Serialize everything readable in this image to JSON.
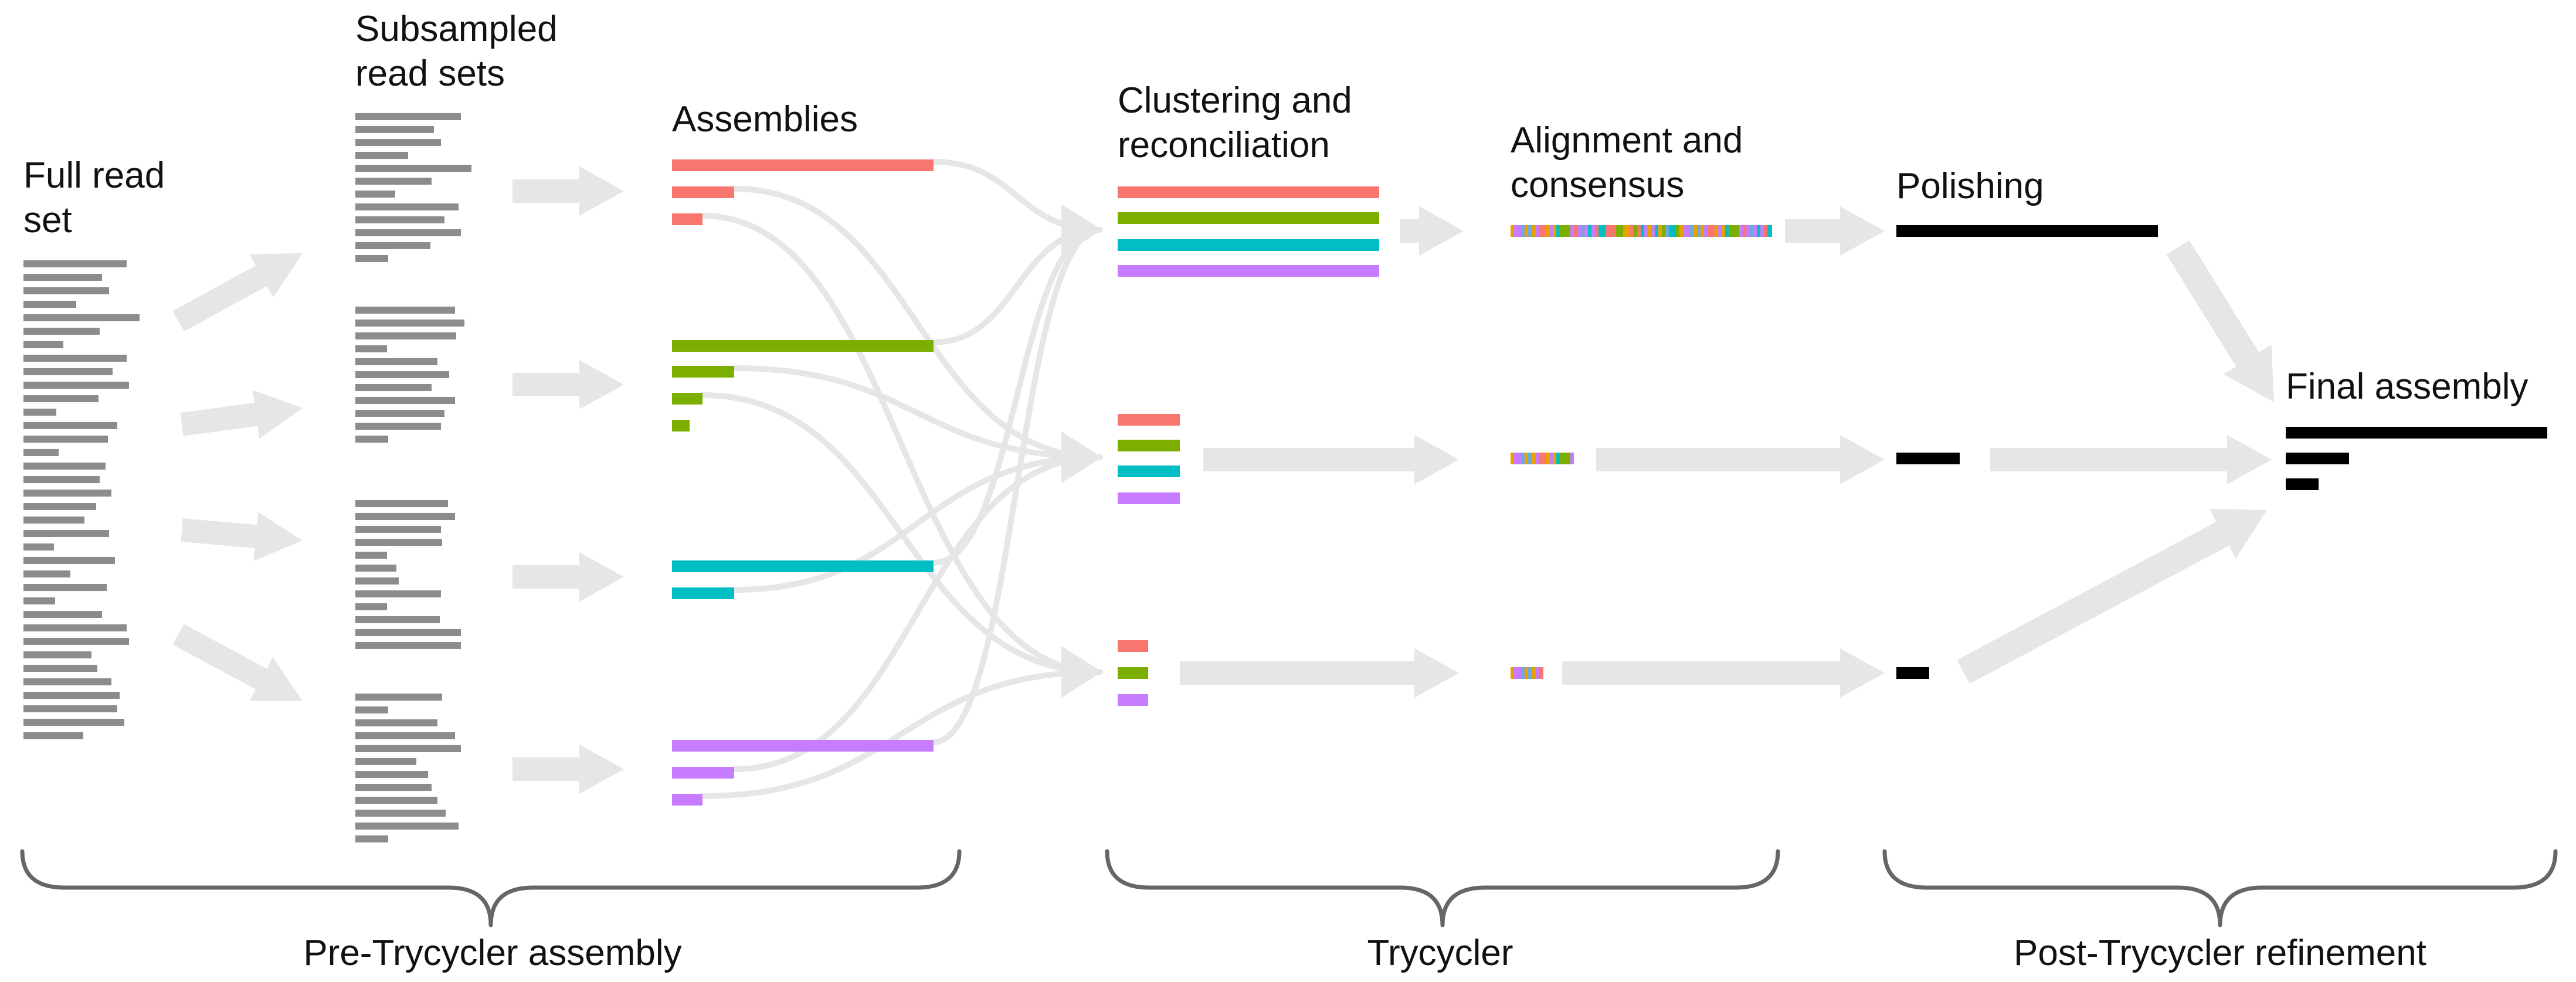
{
  "stages": {
    "full_read_set": [
      "Full read",
      "set"
    ],
    "subsampled": [
      "Subsampled",
      "read sets"
    ],
    "assemblies": [
      "Assemblies"
    ],
    "clustering": [
      "Clustering and",
      "reconciliation"
    ],
    "alignment": [
      "Alignment and",
      "consensus"
    ],
    "polishing": [
      "Polishing"
    ],
    "final": [
      "Final assembly"
    ]
  },
  "groups": {
    "pre": "Pre-Trycycler assembly",
    "trycycler": "Trycycler",
    "post": "Post-Trycycler refinement"
  },
  "colors": {
    "red": "#f8766d",
    "green": "#7cae00",
    "cyan": "#00bfc4",
    "purple": "#c77cff",
    "read": "#8c8c8c",
    "arrow": "#e6e6e6",
    "black": "#000000",
    "brace": "#666666"
  }
}
